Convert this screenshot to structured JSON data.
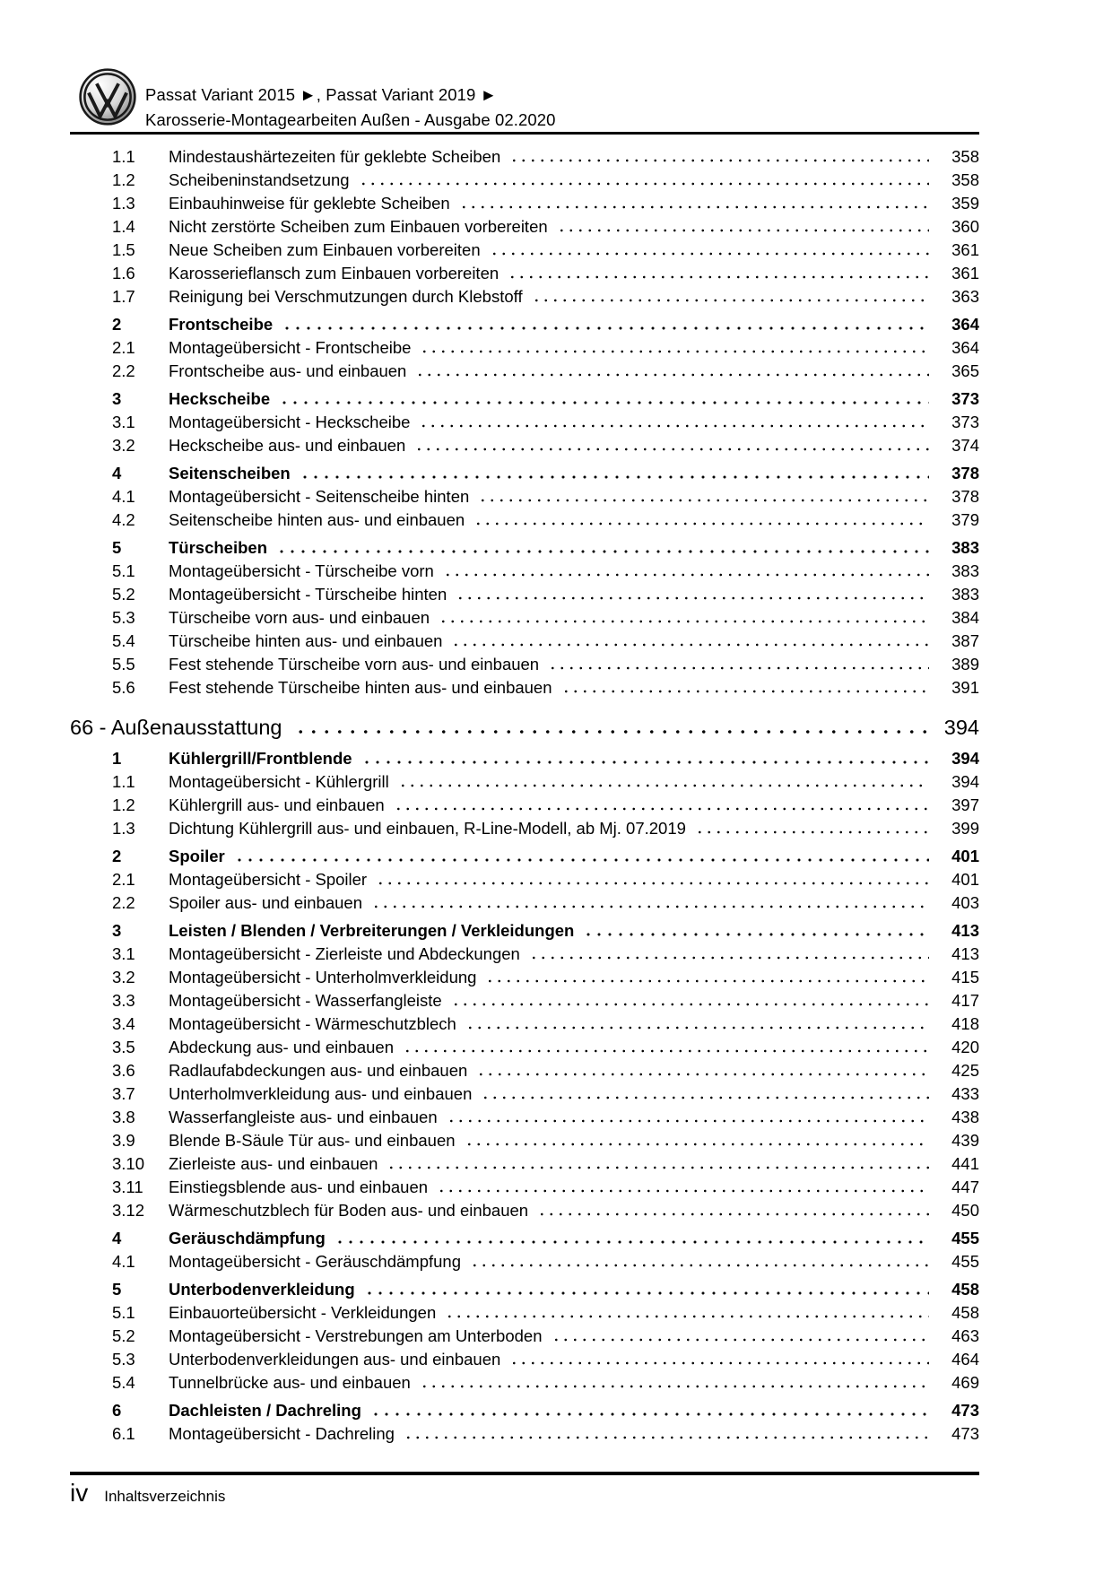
{
  "header": {
    "title_line1": "Passat Variant 2015 ►, Passat Variant 2019 ►",
    "title_line2": "Karosserie-Montagearbeiten Außen - Ausgabe 02.2020",
    "logo": "vw-logo"
  },
  "toc": {
    "entries": [
      {
        "level": "sub",
        "num": "1.1",
        "title": "Mindestaushärtezeiten für geklebte Scheiben",
        "page": "358"
      },
      {
        "level": "sub",
        "num": "1.2",
        "title": "Scheibeninstandsetzung",
        "page": "358"
      },
      {
        "level": "sub",
        "num": "1.3",
        "title": "Einbauhinweise für geklebte Scheiben",
        "page": "359"
      },
      {
        "level": "sub",
        "num": "1.4",
        "title": "Nicht zerstörte Scheiben zum Einbauen vorbereiten",
        "page": "360"
      },
      {
        "level": "sub",
        "num": "1.5",
        "title": "Neue Scheiben zum Einbauen vorbereiten",
        "page": "361"
      },
      {
        "level": "sub",
        "num": "1.6",
        "title": "Karosserieflansch zum Einbauen vorbereiten",
        "page": "361"
      },
      {
        "level": "sub",
        "num": "1.7",
        "title": "Reinigung bei Verschmutzungen durch Klebstoff",
        "page": "363"
      },
      {
        "level": "section",
        "num": "2",
        "title": "Frontscheibe",
        "page": "364"
      },
      {
        "level": "sub",
        "num": "2.1",
        "title": "Montageübersicht - Frontscheibe",
        "page": "364"
      },
      {
        "level": "sub",
        "num": "2.2",
        "title": "Frontscheibe aus- und einbauen",
        "page": "365"
      },
      {
        "level": "section",
        "num": "3",
        "title": "Heckscheibe",
        "page": "373"
      },
      {
        "level": "sub",
        "num": "3.1",
        "title": "Montageübersicht - Heckscheibe",
        "page": "373"
      },
      {
        "level": "sub",
        "num": "3.2",
        "title": "Heckscheibe aus- und einbauen",
        "page": "374"
      },
      {
        "level": "section",
        "num": "4",
        "title": "Seitenscheiben",
        "page": "378"
      },
      {
        "level": "sub",
        "num": "4.1",
        "title": "Montageübersicht - Seitenscheibe hinten",
        "page": "378"
      },
      {
        "level": "sub",
        "num": "4.2",
        "title": "Seitenscheibe hinten aus- und einbauen",
        "page": "379"
      },
      {
        "level": "section",
        "num": "5",
        "title": "Türscheiben",
        "page": "383"
      },
      {
        "level": "sub",
        "num": "5.1",
        "title": "Montageübersicht - Türscheibe vorn",
        "page": "383"
      },
      {
        "level": "sub",
        "num": "5.2",
        "title": "Montageübersicht - Türscheibe hinten",
        "page": "383"
      },
      {
        "level": "sub",
        "num": "5.3",
        "title": "Türscheibe vorn aus- und einbauen",
        "page": "384"
      },
      {
        "level": "sub",
        "num": "5.4",
        "title": "Türscheibe hinten aus- und einbauen",
        "page": "387"
      },
      {
        "level": "sub",
        "num": "5.5",
        "title": "Fest stehende Türscheibe vorn aus- und einbauen",
        "page": "389"
      },
      {
        "level": "sub",
        "num": "5.6",
        "title": "Fest stehende Türscheibe hinten aus- und einbauen",
        "page": "391"
      },
      {
        "level": "chapter",
        "num": "",
        "title": "66 - Außenausstattung",
        "page": "394"
      },
      {
        "level": "section",
        "num": "1",
        "title": "Kühlergrill/Frontblende",
        "page": "394"
      },
      {
        "level": "sub",
        "num": "1.1",
        "title": "Montageübersicht - Kühlergrill",
        "page": "394"
      },
      {
        "level": "sub",
        "num": "1.2",
        "title": "Kühlergrill aus- und einbauen",
        "page": "397"
      },
      {
        "level": "sub",
        "num": "1.3",
        "title": "Dichtung Kühlergrill aus- und einbauen, R-Line-Modell, ab Mj. 07.2019",
        "page": "399"
      },
      {
        "level": "section",
        "num": "2",
        "title": "Spoiler",
        "page": "401"
      },
      {
        "level": "sub",
        "num": "2.1",
        "title": "Montageübersicht - Spoiler",
        "page": "401"
      },
      {
        "level": "sub",
        "num": "2.2",
        "title": "Spoiler aus- und einbauen",
        "page": "403"
      },
      {
        "level": "section",
        "num": "3",
        "title": "Leisten / Blenden / Verbreiterungen / Verkleidungen",
        "page": "413"
      },
      {
        "level": "sub",
        "num": "3.1",
        "title": "Montageübersicht - Zierleiste und Abdeckungen",
        "page": "413"
      },
      {
        "level": "sub",
        "num": "3.2",
        "title": "Montageübersicht - Unterholmverkleidung",
        "page": "415"
      },
      {
        "level": "sub",
        "num": "3.3",
        "title": "Montageübersicht - Wasserfangleiste",
        "page": "417"
      },
      {
        "level": "sub",
        "num": "3.4",
        "title": "Montageübersicht - Wärmeschutzblech",
        "page": "418"
      },
      {
        "level": "sub",
        "num": "3.5",
        "title": "Abdeckung aus- und einbauen",
        "page": "420"
      },
      {
        "level": "sub",
        "num": "3.6",
        "title": "Radlaufabdeckungen aus- und einbauen",
        "page": "425"
      },
      {
        "level": "sub",
        "num": "3.7",
        "title": "Unterholmverkleidung aus- und einbauen",
        "page": "433"
      },
      {
        "level": "sub",
        "num": "3.8",
        "title": "Wasserfangleiste aus- und einbauen",
        "page": "438"
      },
      {
        "level": "sub",
        "num": "3.9",
        "title": "Blende B-Säule Tür aus- und einbauen",
        "page": "439"
      },
      {
        "level": "sub",
        "num": "3.10",
        "title": "Zierleiste aus- und einbauen",
        "page": "441"
      },
      {
        "level": "sub",
        "num": "3.11",
        "title": "Einstiegsblende aus- und einbauen",
        "page": "447"
      },
      {
        "level": "sub",
        "num": "3.12",
        "title": "Wärmeschutzblech für Boden aus- und einbauen",
        "page": "450"
      },
      {
        "level": "section",
        "num": "4",
        "title": "Geräuschdämpfung",
        "page": "455"
      },
      {
        "level": "sub",
        "num": "4.1",
        "title": "Montageübersicht - Geräuschdämpfung",
        "page": "455"
      },
      {
        "level": "section",
        "num": "5",
        "title": "Unterbodenverkleidung",
        "page": "458"
      },
      {
        "level": "sub",
        "num": "5.1",
        "title": "Einbauorteübersicht - Verkleidungen",
        "page": "458"
      },
      {
        "level": "sub",
        "num": "5.2",
        "title": "Montageübersicht - Verstrebungen am Unterboden",
        "page": "463"
      },
      {
        "level": "sub",
        "num": "5.3",
        "title": "Unterbodenverkleidungen aus- und einbauen",
        "page": "464"
      },
      {
        "level": "sub",
        "num": "5.4",
        "title": "Tunnelbrücke aus- und einbauen",
        "page": "469"
      },
      {
        "level": "section",
        "num": "6",
        "title": "Dachleisten / Dachreling",
        "page": "473"
      },
      {
        "level": "sub",
        "num": "6.1",
        "title": "Montageübersicht - Dachreling",
        "page": "473"
      }
    ]
  },
  "footer": {
    "page_label": "iv",
    "label": "Inhaltsverzeichnis"
  }
}
